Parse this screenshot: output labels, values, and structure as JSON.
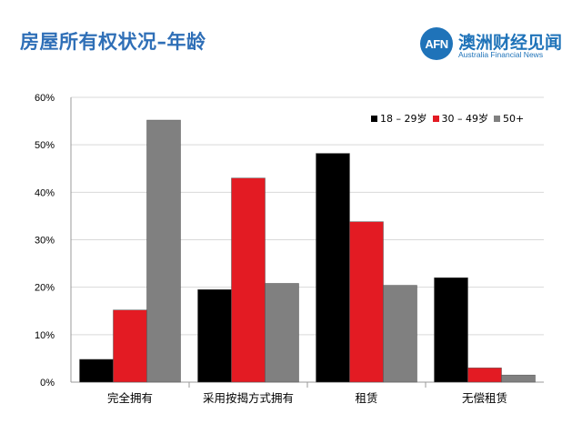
{
  "header": {
    "title": "房屋所有权状况–年龄",
    "logo_mark": "AFN",
    "logo_cn": "澳洲财经见闻",
    "logo_en": "Australia Financial News"
  },
  "colors": {
    "title": "#2f6fb7",
    "brand": "#1f73b9",
    "series": [
      "#000000",
      "#e31b23",
      "#808080"
    ],
    "grid": "#d9d9d9"
  },
  "chart_data": {
    "type": "bar",
    "categories": [
      "完全拥有",
      "采用按揭方式拥有",
      "租赁",
      "无偿租赁"
    ],
    "series": [
      {
        "name": "18 – 29岁",
        "values": [
          4.8,
          19.5,
          48.2,
          22.0
        ]
      },
      {
        "name": "30 – 49岁",
        "values": [
          15.2,
          43.0,
          33.8,
          3.0
        ]
      },
      {
        "name": "50+",
        "values": [
          55.2,
          20.8,
          20.4,
          1.5
        ]
      }
    ],
    "y_ticks": [
      "0%",
      "10%",
      "20%",
      "30%",
      "40%",
      "50%",
      "60%"
    ],
    "ylim": [
      0,
      60
    ],
    "grid": true,
    "legend_position": "top-right",
    "title": "房屋所有权状况–年龄"
  }
}
